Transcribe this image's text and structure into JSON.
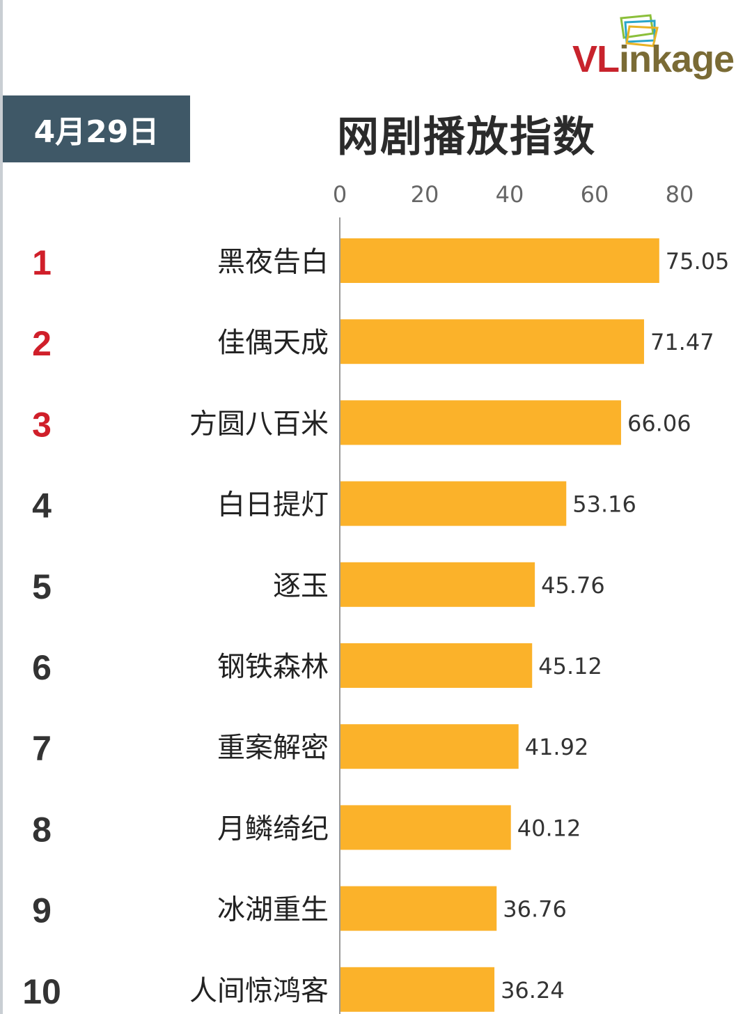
{
  "header": {
    "logo": "VLinkage",
    "date": "4月29日"
  },
  "colors": {
    "bar": "#fbb22a",
    "rank_top": "#d01f2a",
    "rank_other": "#333333",
    "date_box": "#3f5867",
    "logo_red": "#c8232c",
    "logo_olive": "#7a6b35"
  },
  "chart_data": {
    "type": "bar",
    "orientation": "horizontal",
    "title": "网剧播放指数",
    "ranks": [
      "1",
      "2",
      "3",
      "4",
      "5",
      "6",
      "7",
      "8",
      "9",
      "10"
    ],
    "categories": [
      "黑夜告白",
      "佳偶天成",
      "方圆八百米",
      "白日提灯",
      "逐玉",
      "钢铁森林",
      "重案解密",
      "月鳞绮纪",
      "冰湖重生",
      "人间惊鸿客"
    ],
    "values": [
      75.05,
      71.47,
      66.06,
      53.16,
      45.76,
      45.12,
      41.92,
      40.12,
      36.76,
      36.24
    ],
    "value_labels": [
      "75.05",
      "71.47",
      "66.06",
      "53.16",
      "45.76",
      "45.12",
      "41.92",
      "40.12",
      "36.76",
      "36.24"
    ],
    "x_ticks": [
      "0",
      "20",
      "40",
      "60",
      "80"
    ],
    "xlim": [
      0,
      80
    ],
    "axis_position": "top",
    "grid": false
  }
}
